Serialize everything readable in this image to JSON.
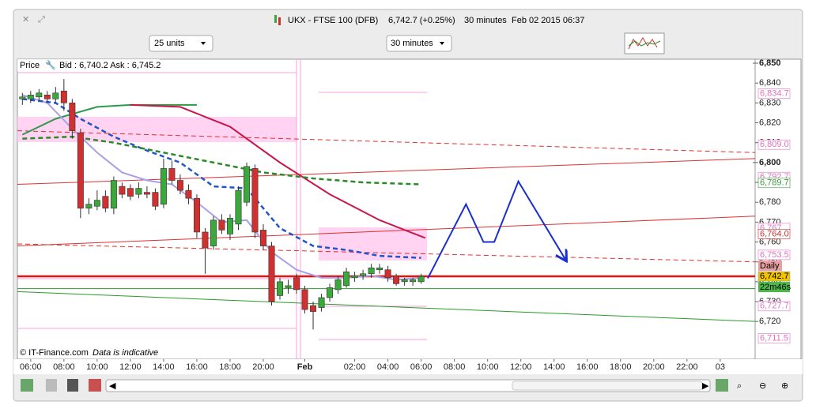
{
  "header": {
    "instrument": "UKX - FTSE 100 (DFB)",
    "quote": "6,742.7 (+0.25%)",
    "interval": "30 minutes",
    "timestamp": "Feb 02 2015 06:37"
  },
  "controls": {
    "units": "25 units",
    "period": "30 minutes"
  },
  "chart_data": {
    "type": "candlestick",
    "price_label": "Price",
    "bid_ask": "Bid : 6,740.2 Ask : 6,745.2",
    "copyright": "© IT-Finance.com",
    "note": "Data is indicative",
    "xlim": [
      -1.6,
      87.2
    ],
    "ylim": [
      6701,
      6852
    ],
    "xticks": [
      {
        "value": 0,
        "label": "06:00"
      },
      {
        "value": 4,
        "label": "08:00"
      },
      {
        "value": 8,
        "label": "10:00"
      },
      {
        "value": 12,
        "label": "12:00"
      },
      {
        "value": 16,
        "label": "14:00"
      },
      {
        "value": 20,
        "label": "16:00"
      },
      {
        "value": 24,
        "label": "18:00"
      },
      {
        "value": 28,
        "label": "20:00"
      },
      {
        "value": 33,
        "label": "Feb"
      },
      {
        "value": 39,
        "label": "02:00"
      },
      {
        "value": 43,
        "label": "04:00"
      },
      {
        "value": 47,
        "label": "06:00"
      },
      {
        "value": 51,
        "label": "08:00"
      },
      {
        "value": 55,
        "label": "10:00"
      },
      {
        "value": 59,
        "label": "12:00"
      },
      {
        "value": 63,
        "label": "14:00"
      },
      {
        "value": 67,
        "label": "16:00"
      },
      {
        "value": 71,
        "label": "18:00"
      },
      {
        "value": 75,
        "label": "20:00"
      },
      {
        "value": 79,
        "label": "22:00"
      },
      {
        "value": 83,
        "label": "03"
      }
    ],
    "yticks": [
      {
        "value": 6720,
        "label": "6,720"
      },
      {
        "value": 6730,
        "label": "6,730"
      },
      {
        "value": 6740,
        "label": "6,740"
      },
      {
        "value": 6750,
        "label": "6,750"
      },
      {
        "value": 6760,
        "label": "6,760"
      },
      {
        "value": 6770,
        "label": "6,770"
      },
      {
        "value": 6780,
        "label": "6,780"
      },
      {
        "value": 6790,
        "label": "6,790"
      },
      {
        "value": 6800,
        "label": "6,800"
      },
      {
        "value": 6810,
        "label": "6,810"
      },
      {
        "value": 6820,
        "label": "6,820"
      },
      {
        "value": 6830,
        "label": "6,830"
      },
      {
        "value": 6840,
        "label": "6,840"
      },
      {
        "value": 6850,
        "label": "6,850"
      }
    ],
    "bold_ticks": [
      6800,
      6850
    ],
    "x": [
      -1,
      0,
      1,
      2,
      3,
      4,
      5,
      6,
      7,
      8,
      9,
      10,
      11,
      12,
      13,
      14,
      15,
      16,
      17,
      18,
      19,
      20,
      21,
      22,
      23,
      24,
      25,
      26,
      27,
      28,
      29,
      30,
      31,
      32,
      33,
      34,
      35,
      36,
      37,
      38,
      39,
      40,
      41,
      42,
      43,
      44,
      45,
      46,
      47
    ],
    "open": [
      6832,
      6832,
      6833,
      6834,
      6832,
      6836,
      6830,
      6815,
      6777,
      6778,
      6783,
      6777,
      6788,
      6787,
      6784,
      6785,
      6785,
      6779,
      6797,
      6791,
      6786,
      6782,
      6765,
      6758,
      6771,
      6764,
      6769,
      6780,
      6797,
      6766,
      6758,
      6733,
      6737,
      6742,
      6736,
      6728,
      6727,
      6732,
      6736,
      6738,
      6742,
      6743,
      6744,
      6746,
      6746,
      6743,
      6740,
      6740,
      6740
    ],
    "high": [
      6835,
      6836,
      6837,
      6836,
      6838,
      6842,
      6832,
      6817,
      6782,
      6786,
      6786,
      6793,
      6790,
      6789,
      6790,
      6788,
      6787,
      6802,
      6801,
      6794,
      6789,
      6784,
      6767,
      6773,
      6774,
      6774,
      6788,
      6800,
      6799,
      6769,
      6760,
      6742,
      6741,
      6744,
      6738,
      6730,
      6734,
      6739,
      6743,
      6747,
      6745,
      6746,
      6749,
      6749,
      6748,
      6744,
      6742,
      6742,
      6744
    ],
    "low": [
      6829,
      6830,
      6831,
      6830,
      6830,
      6826,
      6812,
      6772,
      6774,
      6776,
      6775,
      6774,
      6782,
      6781,
      6782,
      6782,
      6776,
      6777,
      6789,
      6784,
      6779,
      6762,
      6744,
      6756,
      6764,
      6761,
      6766,
      6778,
      6762,
      6756,
      6728,
      6731,
      6734,
      6734,
      6724,
      6716,
      6725,
      6730,
      6734,
      6737,
      6740,
      6741,
      6742,
      6744,
      6740,
      6738,
      6738,
      6738,
      6739
    ],
    "close": [
      6833,
      6834,
      6835,
      6832,
      6835,
      6830,
      6816,
      6777,
      6779,
      6781,
      6777,
      6791,
      6784,
      6783,
      6787,
      6784,
      6778,
      6797,
      6791,
      6786,
      6782,
      6765,
      6757,
      6771,
      6766,
      6772,
      6786,
      6798,
      6765,
      6758,
      6730,
      6740,
      6738,
      6736,
      6726,
      6725,
      6732,
      6737,
      6741,
      6745,
      6743,
      6744,
      6747,
      6747,
      6742,
      6739,
      6741,
      6741,
      6742.7
    ],
    "up_color": "#3aa83a",
    "down_color": "#d03030",
    "indicators": [
      {
        "color": "#2e9a4a",
        "style": "solid",
        "x": [
          -1,
          3,
          8,
          12,
          20
        ],
        "y": [
          6814,
          6822,
          6828,
          6829,
          6829
        ]
      },
      {
        "color": "#c8174a",
        "style": "solid",
        "x": [
          12,
          18,
          24,
          30,
          36,
          42,
          47.5
        ],
        "y": [
          6829,
          6828,
          6818,
          6800,
          6784,
          6771,
          6762
        ]
      },
      {
        "color": "#a8a0e8",
        "style": "solid",
        "x": [
          -1,
          2,
          5,
          8,
          11,
          14,
          17,
          20,
          23,
          26,
          29,
          32,
          35,
          38,
          41,
          44,
          47
        ],
        "y": [
          6834,
          6830,
          6817,
          6805,
          6795,
          6791,
          6789,
          6780,
          6770,
          6771,
          6755,
          6746,
          6742,
          6742,
          6743,
          6741,
          6742
        ]
      },
      {
        "color": "#2255cc",
        "style": "dashed",
        "x": [
          -1,
          3,
          6,
          10,
          14,
          18,
          22,
          26,
          30,
          34,
          38,
          42,
          47
        ],
        "y": [
          6832,
          6830,
          6822,
          6813,
          6806,
          6800,
          6788,
          6787,
          6767,
          6758,
          6756,
          6753,
          6752
        ]
      },
      {
        "color": "#2a8a2a",
        "style": "dashed",
        "x": [
          -1,
          5,
          10,
          16,
          22,
          28,
          34,
          40,
          47
        ],
        "y": [
          6812,
          6813,
          6810,
          6805,
          6800,
          6795,
          6792,
          6790,
          6789
        ]
      }
    ],
    "trendlines": [
      {
        "color": "#e03030",
        "style": "solid",
        "x": [
          -1.6,
          87.2
        ],
        "y": [
          6789,
          6802
        ]
      },
      {
        "color": "#e03030",
        "style": "solid",
        "x": [
          -1.6,
          87.2
        ],
        "y": [
          6758,
          6773
        ]
      },
      {
        "color": "#e03030",
        "style": "dashed",
        "x": [
          -1.6,
          87.2
        ],
        "y": [
          6816,
          6805
        ]
      },
      {
        "color": "#e03030",
        "style": "dashed",
        "x": [
          -1.6,
          87.2
        ],
        "y": [
          6759,
          6750
        ]
      },
      {
        "color": "#2a9a2a",
        "style": "solid",
        "x": [
          -1.6,
          87.2
        ],
        "y": [
          6735,
          6720
        ]
      }
    ],
    "horizontal_lines": [
      {
        "value": 6742.7,
        "color": "#e8130f"
      },
      {
        "value": 6736.5,
        "color": "#2a9a2a"
      }
    ],
    "forecast": {
      "color": "#1a2fd0",
      "x": [
        47.8,
        52.4,
        54.5,
        55.8,
        58.7,
        64.4
      ],
      "y": [
        6741.7,
        6779,
        6760,
        6760,
        6790.5,
        6751
      ]
    },
    "price_tags": {
      "values": [
        6834.7,
        6809.0,
        6792.7,
        6789.7,
        6767,
        6764.0,
        6753.5,
        6742.7,
        6727.7,
        6711.5
      ],
      "value_labels": [
        "6,834.7",
        "6,809.0",
        "6,792.7",
        "6,789.7",
        "6,767",
        "6,764.0",
        "6,753.5",
        "6,742.7",
        "6,727.7",
        "6,711.5"
      ],
      "colors": [
        "#e070c0",
        "#e070c0",
        "#e070c0",
        "#3a9a3a",
        "#e070c0",
        "#d03030",
        "#e070c0",
        "#000000",
        "#e070c0",
        "#e070c0"
      ],
      "fills": [
        "#ffffff",
        "#ffffff",
        "#ffffff",
        "#ffffff",
        "#ffffff",
        "#ffffff",
        "#ffffff",
        "#f2c400",
        "#ffffff",
        "#ffffff"
      ]
    },
    "daily_tag": "Daily",
    "countdown": "22m46s"
  }
}
